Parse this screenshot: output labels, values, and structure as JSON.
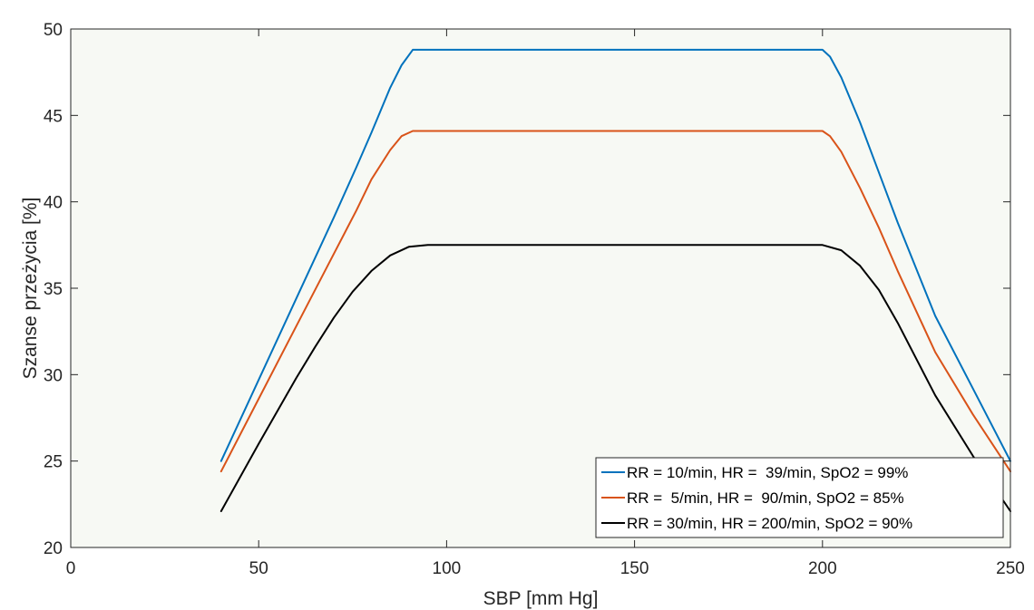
{
  "chart_data": {
    "type": "line",
    "title": "",
    "xlabel": "SBP [mm Hg]",
    "ylabel": "Szanse przeżycia [%]",
    "xlim": [
      0,
      250
    ],
    "ylim": [
      20,
      50
    ],
    "xticks": [
      0,
      50,
      100,
      150,
      200,
      250
    ],
    "yticks": [
      20,
      25,
      30,
      35,
      40,
      45,
      50
    ],
    "xtick_labels": [
      "0",
      "50",
      "100",
      "150",
      "200",
      "250"
    ],
    "ytick_labels": [
      "20",
      "25",
      "30",
      "35",
      "40",
      "45",
      "50"
    ],
    "grid": false,
    "legend_position": "bottom-right",
    "background": "#f7f9f4",
    "series": [
      {
        "name": "RR = 10/min, HR =  39/min, SpO2 = 99%",
        "color": "#0072bd",
        "x": [
          40,
          50,
          60,
          70,
          76,
          80,
          85,
          88,
          91,
          95,
          100,
          150,
          195,
          200,
          202,
          205,
          210,
          215,
          220,
          230,
          240,
          250
        ],
        "y": [
          25.0,
          29.7,
          34.4,
          39.1,
          42.0,
          44.0,
          46.6,
          47.9,
          48.8,
          48.8,
          48.8,
          48.8,
          48.8,
          48.8,
          48.4,
          47.2,
          44.6,
          41.7,
          38.8,
          33.4,
          29.2,
          25.0
        ]
      },
      {
        "name": "RR =  5/min, HR =  90/min, SpO2 = 85%",
        "color": "#d95319",
        "x": [
          40,
          50,
          60,
          70,
          76,
          80,
          85,
          88,
          91,
          95,
          100,
          150,
          195,
          200,
          202,
          205,
          210,
          215,
          220,
          230,
          240,
          250
        ],
        "y": [
          24.4,
          28.6,
          32.8,
          37.0,
          39.5,
          41.3,
          43.0,
          43.8,
          44.1,
          44.1,
          44.1,
          44.1,
          44.1,
          44.1,
          43.8,
          42.9,
          40.8,
          38.5,
          36.0,
          31.3,
          27.7,
          24.4
        ]
      },
      {
        "name": "RR = 30/min, HR = 200/min, SpO2 = 90%",
        "color": "#000000",
        "x": [
          40,
          50,
          60,
          65,
          70,
          75,
          80,
          85,
          90,
          95,
          100,
          150,
          195,
          200,
          205,
          210,
          215,
          220,
          225,
          230,
          240,
          250
        ],
        "y": [
          22.1,
          26.0,
          29.8,
          31.6,
          33.3,
          34.8,
          36.0,
          36.9,
          37.4,
          37.5,
          37.5,
          37.5,
          37.5,
          37.5,
          37.2,
          36.3,
          34.9,
          33.0,
          30.9,
          28.8,
          25.3,
          22.1
        ]
      }
    ]
  }
}
